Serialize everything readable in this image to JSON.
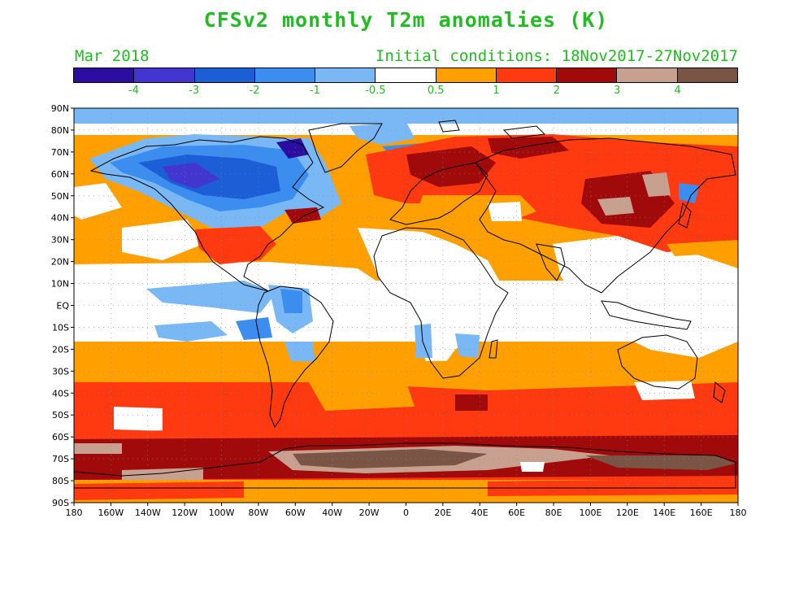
{
  "header": {
    "title": "CFSv2 monthly T2m anomalies (K)",
    "month": "Mar 2018",
    "initial_conditions": "Initial conditions: 18Nov2017-27Nov2017"
  },
  "colorbar": {
    "colors": [
      "#2b0ea0",
      "#4335d0",
      "#1c5ed6",
      "#3b8ef0",
      "#7ab8f5",
      "#ffffff",
      "#ffa000",
      "#ff3a10",
      "#a00a0a",
      "#c8a090",
      "#7a5545"
    ],
    "labels": [
      "-4",
      "-3",
      "-2",
      "-1",
      "-0.5",
      "0.5",
      "1",
      "2",
      "3",
      "4"
    ]
  },
  "map": {
    "lat_labels": [
      "90N",
      "80N",
      "70N",
      "60N",
      "50N",
      "40N",
      "30N",
      "20N",
      "10N",
      "EQ",
      "10S",
      "20S",
      "30S",
      "40S",
      "50S",
      "60S",
      "70S",
      "80S",
      "90S"
    ],
    "lon_labels": [
      "180",
      "160W",
      "140W",
      "120W",
      "100W",
      "80W",
      "60W",
      "40W",
      "20W",
      "0",
      "20E",
      "40E",
      "60E",
      "80E",
      "100E",
      "120E",
      "140E",
      "160E",
      "180"
    ]
  }
}
